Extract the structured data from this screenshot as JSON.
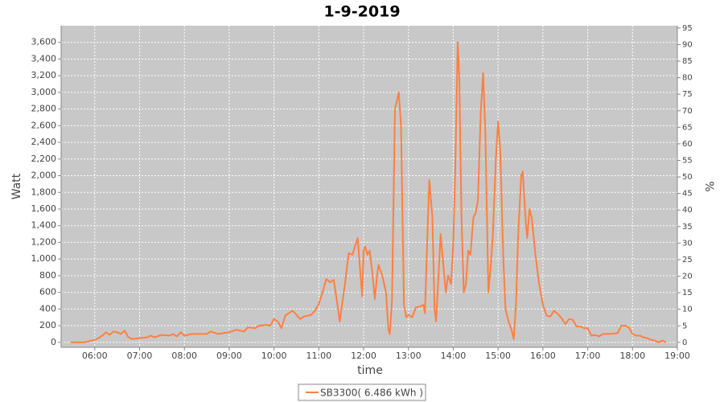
{
  "chart_data": {
    "type": "line",
    "title": "1-9-2019",
    "x_label": "time",
    "y_label": "Watt",
    "y2_label": "%",
    "x": [
      "05:28",
      "05:46",
      "06:00",
      "06:05",
      "06:10",
      "06:15",
      "06:20",
      "06:25",
      "06:30",
      "06:35",
      "06:40",
      "06:45",
      "06:50",
      "07:00",
      "07:10",
      "07:15",
      "07:20",
      "07:30",
      "07:40",
      "07:45",
      "07:50",
      "07:55",
      "08:00",
      "08:10",
      "08:30",
      "08:35",
      "08:45",
      "09:00",
      "09:10",
      "09:20",
      "09:25",
      "09:35",
      "09:40",
      "09:50",
      "09:55",
      "10:00",
      "10:05",
      "10:10",
      "10:15",
      "10:25",
      "10:30",
      "10:35",
      "10:40",
      "10:50",
      "10:55",
      "11:00",
      "11:05",
      "11:10",
      "11:15",
      "11:20",
      "11:25",
      "11:28",
      "11:35",
      "11:40",
      "11:45",
      "11:50",
      "11:52",
      "11:55",
      "11:58",
      "12:00",
      "12:02",
      "12:05",
      "12:08",
      "12:12",
      "12:15",
      "12:18",
      "12:20",
      "12:25",
      "12:30",
      "12:33",
      "12:35",
      "12:38",
      "12:42",
      "12:47",
      "12:50",
      "12:54",
      "12:57",
      "13:00",
      "13:05",
      "13:10",
      "13:15",
      "13:20",
      "13:22",
      "13:25",
      "13:28",
      "13:32",
      "13:35",
      "13:37",
      "13:40",
      "13:43",
      "13:47",
      "13:50",
      "13:53",
      "13:57",
      "14:00",
      "14:03",
      "14:06",
      "14:08",
      "14:11",
      "14:14",
      "14:17",
      "14:20",
      "14:23",
      "14:27",
      "14:30",
      "14:33",
      "14:37",
      "14:40",
      "14:43",
      "14:47",
      "14:50",
      "14:53",
      "14:57",
      "15:00",
      "15:03",
      "15:07",
      "15:10",
      "15:14",
      "15:18",
      "15:21",
      "15:24",
      "15:27",
      "15:31",
      "15:33",
      "15:37",
      "15:39",
      "15:42",
      "15:45",
      "15:50",
      "15:55",
      "16:00",
      "16:05",
      "16:10",
      "16:15",
      "16:20",
      "16:25",
      "16:30",
      "16:35",
      "16:40",
      "16:45",
      "16:50",
      "16:55",
      "17:00",
      "17:05",
      "17:10",
      "17:15",
      "17:20",
      "17:30",
      "17:40",
      "17:45",
      "17:50",
      "17:55",
      "18:00",
      "18:05",
      "18:10",
      "18:15",
      "18:20",
      "18:25",
      "18:30",
      "18:35",
      "18:40",
      "18:45"
    ],
    "series": [
      {
        "name": "SB3300( 6.486 kWh )",
        "color": "#ff7f3f",
        "values": [
          0,
          0,
          30,
          50,
          80,
          120,
          90,
          130,
          120,
          100,
          140,
          60,
          40,
          50,
          60,
          80,
          60,
          90,
          80,
          100,
          70,
          120,
          80,
          100,
          100,
          130,
          100,
          120,
          150,
          130,
          180,
          170,
          200,
          210,
          200,
          280,
          250,
          170,
          320,
          380,
          330,
          280,
          310,
          330,
          380,
          460,
          600,
          760,
          720,
          750,
          450,
          250,
          700,
          1070,
          1050,
          1200,
          1250,
          900,
          550,
          1100,
          1150,
          1050,
          1100,
          800,
          520,
          800,
          930,
          800,
          600,
          150,
          100,
          500,
          2800,
          3000,
          2600,
          450,
          300,
          330,
          300,
          420,
          430,
          450,
          350,
          1200,
          1950,
          1500,
          400,
          250,
          750,
          1300,
          900,
          600,
          800,
          700,
          1200,
          2200,
          3600,
          3200,
          1500,
          600,
          700,
          1100,
          1050,
          1500,
          1550,
          1700,
          2800,
          3230,
          2500,
          600,
          900,
          1300,
          2200,
          2650,
          2300,
          1000,
          400,
          250,
          150,
          40,
          450,
          1300,
          2000,
          2050,
          1450,
          1250,
          1600,
          1500,
          1050,
          700,
          450,
          320,
          310,
          380,
          340,
          290,
          220,
          280,
          270,
          190,
          190,
          170,
          170,
          80,
          90,
          70,
          100,
          100,
          110,
          200,
          200,
          180,
          100,
          80,
          80,
          60,
          50,
          30,
          20,
          0,
          20,
          0
        ]
      }
    ],
    "xlim": [
      "05:15",
      "19:00"
    ],
    "xticks": [
      "06:00",
      "07:00",
      "08:00",
      "09:00",
      "10:00",
      "11:00",
      "12:00",
      "13:00",
      "14:00",
      "15:00",
      "16:00",
      "17:00",
      "18:00",
      "19:00"
    ],
    "ylim": [
      -60,
      3800
    ],
    "yticks": [
      0,
      200,
      400,
      600,
      800,
      {
        "value": 1000,
        "label": "1,000"
      },
      {
        "value": 1200,
        "label": "1,200"
      },
      {
        "value": 1400,
        "label": "1,400"
      },
      {
        "value": 1600,
        "label": "1,600"
      },
      {
        "value": 1800,
        "label": "1,800"
      },
      {
        "value": 2000,
        "label": "2,000"
      },
      {
        "value": 2200,
        "label": "2,200"
      },
      {
        "value": 2400,
        "label": "2,400"
      },
      {
        "value": 2600,
        "label": "2,600"
      },
      {
        "value": 2800,
        "label": "2,800"
      },
      {
        "value": 3000,
        "label": "3,000"
      },
      {
        "value": 3200,
        "label": "3,200"
      },
      {
        "value": 3400,
        "label": "3,400"
      },
      {
        "value": 3600,
        "label": "3,600"
      }
    ],
    "y2lim": [
      -1.5,
      95.7
    ],
    "y2ticks": [
      0,
      5,
      10,
      15,
      20,
      25,
      30,
      35,
      40,
      45,
      50,
      55,
      60,
      65,
      70,
      75,
      80,
      85,
      90,
      95
    ],
    "grid": true,
    "plot_background": "#c8c8c8",
    "legend": "bottom"
  }
}
